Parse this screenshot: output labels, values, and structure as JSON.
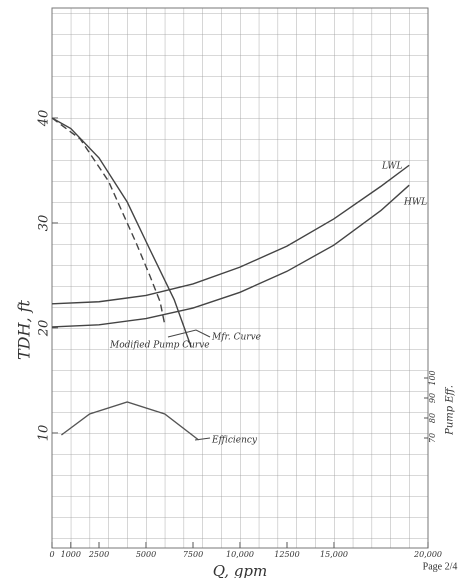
{
  "chart_data": {
    "type": "line",
    "x_label": "Q, gpm",
    "y_label": "TDH, ft",
    "y2_label": "Pump Eff.",
    "xlim": [
      0,
      20000
    ],
    "xticks": [
      0,
      1000,
      2500,
      5000,
      7500,
      {
        "value": 10000,
        "label": "10,000"
      },
      12500,
      {
        "value": 15000,
        "label": "15,000"
      },
      {
        "value": 20000,
        "label": "20,000"
      }
    ],
    "ylim": [
      0,
      50
    ],
    "yticks": [
      10,
      20,
      30,
      40
    ],
    "y2lim": [
      20,
      282.5
    ],
    "y2ticks": [
      70,
      80,
      90,
      100
    ],
    "grid": true,
    "series": [
      {
        "name": "Mfr. Curve",
        "color": "#444444",
        "style": "solid",
        "x": [
          0,
          1000,
          2500,
          4000,
          5200,
          6500,
          7400
        ],
        "values": [
          40,
          39,
          36.2,
          32,
          27.5,
          22.7,
          18.2
        ]
      },
      {
        "name": "Modified Pump Curve",
        "color": "#444444",
        "style": "dashed",
        "x": [
          0,
          1500,
          3000,
          4500,
          5200,
          5750,
          6000
        ],
        "values": [
          40,
          38,
          34,
          28,
          25,
          22.5,
          20.3
        ]
      },
      {
        "name": "LWL",
        "color": "#444444",
        "style": "solid",
        "x": [
          0,
          2500,
          5000,
          7500,
          10000,
          12500,
          15000,
          17500,
          19000
        ],
        "values": [
          22.3,
          22.5,
          23.1,
          24.2,
          25.8,
          27.8,
          30.4,
          33.5,
          35.5
        ]
      },
      {
        "name": "HWL",
        "color": "#444444",
        "style": "solid",
        "x": [
          0,
          2500,
          5000,
          7500,
          10000,
          12500,
          15000,
          17500,
          19000
        ],
        "values": [
          20.1,
          20.3,
          20.9,
          21.9,
          23.4,
          25.4,
          27.9,
          31.2,
          33.6
        ]
      },
      {
        "name": "Efficiency",
        "color": "#555555",
        "style": "solid",
        "axis": "y2",
        "x": [
          500,
          2000,
          4000,
          6000,
          7800
        ],
        "values": [
          71.5,
          82,
          88,
          82,
          69
        ]
      }
    ],
    "page_label": "Page 2/4"
  }
}
